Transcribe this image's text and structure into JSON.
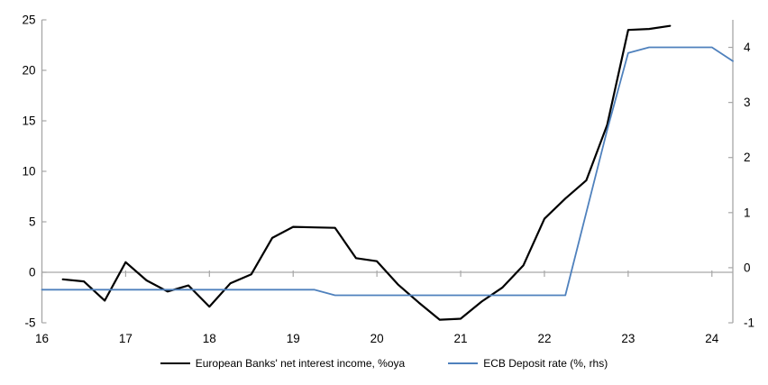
{
  "chart_data": {
    "type": "line",
    "title": "",
    "x_ticks": [
      "16",
      "17",
      "18",
      "19",
      "20",
      "21",
      "22",
      "23",
      "24"
    ],
    "x_range": [
      16,
      24.25
    ],
    "left_axis": {
      "min": -5,
      "max": 25,
      "ticks": [
        25,
        20,
        15,
        10,
        5,
        0,
        -5
      ]
    },
    "right_axis": {
      "min": -1,
      "max": 4.5,
      "ticks": [
        4,
        3,
        2,
        1,
        0,
        -1
      ]
    },
    "grid": "zero-line-only",
    "legend_position": "bottom-center",
    "axis_color": "#a6a6a6",
    "background_color": "#ffffff",
    "series": [
      {
        "name": "European Banks' net interest income, %oya",
        "axis": "left",
        "color": "#000000",
        "line_width": 2.2,
        "points": [
          [
            16.25,
            -0.7
          ],
          [
            16.5,
            -0.9
          ],
          [
            16.75,
            -2.8
          ],
          [
            17.0,
            1.0
          ],
          [
            17.25,
            -0.8
          ],
          [
            17.5,
            -1.9
          ],
          [
            17.75,
            -1.3
          ],
          [
            18.0,
            -3.4
          ],
          [
            18.25,
            -1.1
          ],
          [
            18.5,
            -0.2
          ],
          [
            18.75,
            3.4
          ],
          [
            19.0,
            4.5
          ],
          [
            19.25,
            4.45
          ],
          [
            19.5,
            4.4
          ],
          [
            19.75,
            1.4
          ],
          [
            20.0,
            1.1
          ],
          [
            20.25,
            -1.2
          ],
          [
            20.5,
            -3.0
          ],
          [
            20.75,
            -4.7
          ],
          [
            21.0,
            -4.6
          ],
          [
            21.25,
            -2.9
          ],
          [
            21.5,
            -1.5
          ],
          [
            21.75,
            0.7
          ],
          [
            22.0,
            5.3
          ],
          [
            22.25,
            7.3
          ],
          [
            22.5,
            9.1
          ],
          [
            22.75,
            14.6
          ],
          [
            23.0,
            24.0
          ],
          [
            23.25,
            24.1
          ],
          [
            23.5,
            24.4
          ]
        ]
      },
      {
        "name": "ECB Deposit rate (%, rhs)",
        "axis": "right",
        "color": "#4f81bd",
        "line_width": 1.8,
        "points": [
          [
            16.0,
            -0.4
          ],
          [
            16.25,
            -0.4
          ],
          [
            16.5,
            -0.4
          ],
          [
            16.75,
            -0.4
          ],
          [
            17.0,
            -0.4
          ],
          [
            17.25,
            -0.4
          ],
          [
            17.5,
            -0.4
          ],
          [
            17.75,
            -0.4
          ],
          [
            18.0,
            -0.4
          ],
          [
            18.25,
            -0.4
          ],
          [
            18.5,
            -0.4
          ],
          [
            18.75,
            -0.4
          ],
          [
            19.0,
            -0.4
          ],
          [
            19.25,
            -0.4
          ],
          [
            19.5,
            -0.5
          ],
          [
            19.75,
            -0.5
          ],
          [
            20.0,
            -0.5
          ],
          [
            20.25,
            -0.5
          ],
          [
            20.5,
            -0.5
          ],
          [
            20.75,
            -0.5
          ],
          [
            21.0,
            -0.5
          ],
          [
            21.25,
            -0.5
          ],
          [
            21.5,
            -0.5
          ],
          [
            21.75,
            -0.5
          ],
          [
            22.0,
            -0.5
          ],
          [
            22.25,
            -0.5
          ],
          [
            22.5,
            1.0
          ],
          [
            22.75,
            2.5
          ],
          [
            23.0,
            3.9
          ],
          [
            23.25,
            4.0
          ],
          [
            23.5,
            4.0
          ],
          [
            23.75,
            4.0
          ],
          [
            24.0,
            4.0
          ],
          [
            24.25,
            3.75
          ]
        ]
      }
    ]
  }
}
